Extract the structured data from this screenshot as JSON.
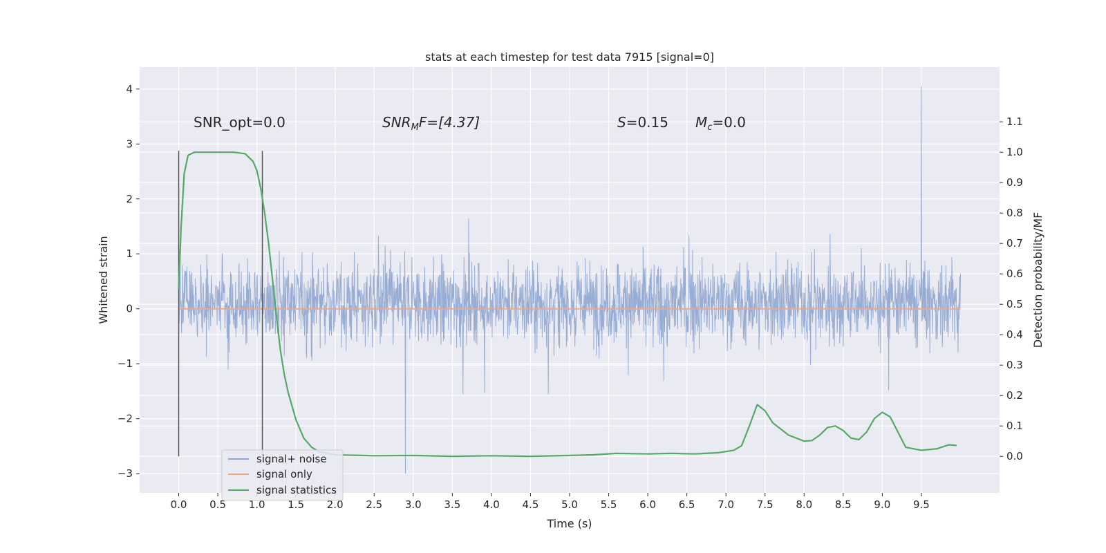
{
  "chart_data": {
    "type": "line",
    "title": "stats at each timestep for test data 7915 [signal=0]",
    "xlabel": "Time (s)",
    "ylabel": "Whitened strain",
    "y2label": "Detection probability/MF",
    "xlim": [
      -0.5,
      10.5
    ],
    "ylim": [
      -3.35,
      4.4
    ],
    "y2lim": [
      -0.12,
      1.28
    ],
    "xticks": [
      0.0,
      0.5,
      1.0,
      1.5,
      2.0,
      2.5,
      3.0,
      3.5,
      4.0,
      4.5,
      5.0,
      5.5,
      6.0,
      6.5,
      7.0,
      7.5,
      8.0,
      8.5,
      9.0,
      9.5
    ],
    "xtick_labels": [
      "0.0",
      "0.5",
      "1.0",
      "1.5",
      "2.0",
      "2.5",
      "3.0",
      "3.5",
      "4.0",
      "4.5",
      "5.0",
      "5.5",
      "6.0",
      "6.5",
      "7.0",
      "7.5",
      "8.0",
      "8.5",
      "9.0",
      "9.5"
    ],
    "yticks": [
      4,
      3,
      2,
      1,
      0,
      -1,
      -2,
      -3
    ],
    "ytick_labels": [
      "4",
      "3",
      "2",
      "1",
      "0",
      "−1",
      "−2",
      "−3"
    ],
    "y2ticks": [
      1.1,
      1.0,
      0.9,
      0.8,
      0.7,
      0.6,
      0.5,
      0.4,
      0.3,
      0.2,
      0.1,
      0.0
    ],
    "y2tick_labels": [
      "1.1",
      "1.0",
      "0.9",
      "0.8",
      "0.7",
      "0.6",
      "0.5",
      "0.4",
      "0.3",
      "0.2",
      "0.1",
      "0.0"
    ],
    "grid": true,
    "legend_position": "lower-left",
    "annotations": {
      "snr_opt": "SNR_opt=0.0",
      "snr_mf_base": "SNR",
      "snr_mf_sub": "M",
      "snr_mf_rest": "F=[4.37]",
      "s_stat_sym": "S",
      "s_stat_val": "=0.15",
      "mc_base": "M",
      "mc_sub": "c",
      "mc_val": "=0.0"
    },
    "vlines_x": [
      0.0,
      1.07
    ],
    "series": [
      {
        "name": "signal+ noise",
        "axis": "left",
        "color": "#8fa6d0",
        "x_range": [
          0.0,
          10.0
        ],
        "y_range_typical": [
          -2.0,
          2.2
        ],
        "y_max": 4.05,
        "y_min": -3.0
      },
      {
        "name": "signal only",
        "axis": "left",
        "color": "#e8a98e",
        "x": [
          0.0,
          10.0
        ],
        "y": [
          0.0,
          0.0
        ]
      },
      {
        "name": "signal statistics",
        "axis": "right",
        "color": "#55a868",
        "x": [
          0.0,
          0.03,
          0.07,
          0.12,
          0.2,
          0.35,
          0.5,
          0.7,
          0.85,
          0.95,
          1.0,
          1.05,
          1.1,
          1.15,
          1.2,
          1.25,
          1.3,
          1.35,
          1.4,
          1.5,
          1.6,
          1.7,
          1.8,
          2.0,
          2.5,
          3.0,
          3.5,
          4.0,
          4.5,
          5.0,
          5.3,
          5.6,
          6.0,
          6.3,
          6.6,
          6.9,
          7.1,
          7.2,
          7.3,
          7.4,
          7.5,
          7.6,
          7.8,
          8.0,
          8.1,
          8.2,
          8.3,
          8.4,
          8.5,
          8.6,
          8.7,
          8.8,
          8.9,
          9.0,
          9.1,
          9.2,
          9.3,
          9.5,
          9.7,
          9.85,
          9.95
        ],
        "y": [
          0.55,
          0.75,
          0.93,
          0.99,
          1.0,
          1.0,
          1.0,
          1.0,
          0.995,
          0.97,
          0.94,
          0.88,
          0.8,
          0.7,
          0.58,
          0.46,
          0.35,
          0.27,
          0.21,
          0.12,
          0.06,
          0.03,
          0.015,
          0.005,
          0.002,
          0.003,
          0.0,
          0.002,
          0.0,
          0.003,
          0.005,
          0.01,
          0.008,
          0.01,
          0.008,
          0.012,
          0.02,
          0.035,
          0.1,
          0.17,
          0.15,
          0.11,
          0.07,
          0.05,
          0.052,
          0.07,
          0.095,
          0.1,
          0.085,
          0.06,
          0.055,
          0.08,
          0.125,
          0.145,
          0.13,
          0.08,
          0.03,
          0.02,
          0.025,
          0.038,
          0.036
        ]
      }
    ]
  }
}
